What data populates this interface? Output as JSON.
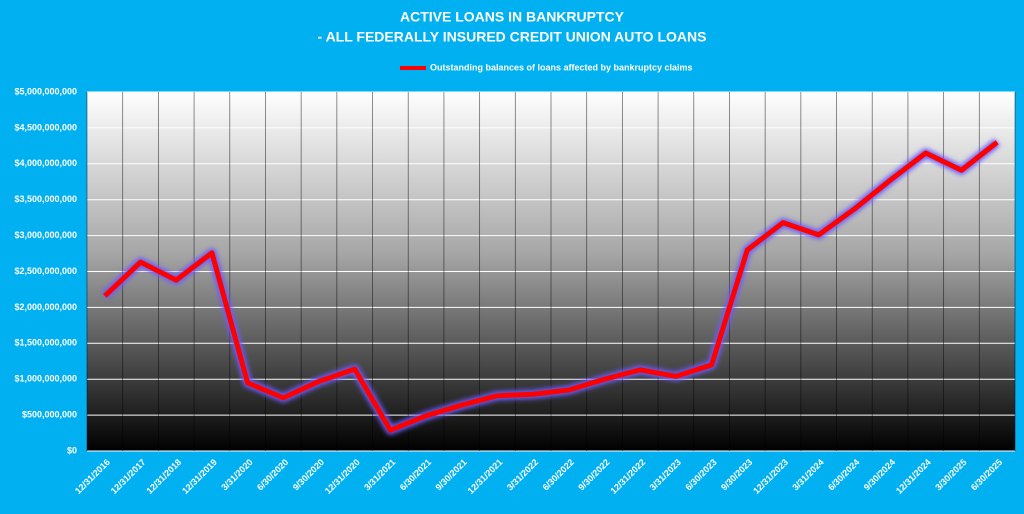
{
  "chart_data": {
    "type": "line",
    "title": "ACTIVE LOANS IN BANKRUPTCY",
    "subtitle": "- ALL FEDERALLY INSURED CREDIT UNION AUTO LOANS",
    "categories": [
      "12/31/2016",
      "12/31/2017",
      "12/31/2018",
      "12/31/2019",
      "3/31/2020",
      "6/30/2020",
      "9/30/2020",
      "12/31/2020",
      "3/31/2021",
      "6/30/2021",
      "9/30/2021",
      "12/31/2021",
      "3/31/2022",
      "6/30/2022",
      "9/30/2022",
      "12/31/2022",
      "3/31/2023",
      "6/30/2023",
      "9/30/2023",
      "12/31/2023",
      "3/31/2024",
      "6/30/2024",
      "9/30/2024",
      "12/31/2024",
      "3/30/2025",
      "6/30/2025"
    ],
    "series": [
      {
        "name": "Outstanding balances of loans affected by bankruptcy claims",
        "color": "#ff0000",
        "values": [
          2160000000,
          2630000000,
          2380000000,
          2760000000,
          950000000,
          740000000,
          970000000,
          1140000000,
          290000000,
          490000000,
          640000000,
          770000000,
          790000000,
          850000000,
          1000000000,
          1130000000,
          1040000000,
          1200000000,
          2800000000,
          3180000000,
          3010000000,
          3370000000,
          3770000000,
          4150000000,
          3910000000,
          4300000000
        ]
      }
    ],
    "ylim": [
      0,
      5000000000
    ],
    "yticks": [
      {
        "value": 0,
        "label": "$0"
      },
      {
        "value": 500000000,
        "label": "$500,000,000"
      },
      {
        "value": 1000000000,
        "label": "$1,000,000,000"
      },
      {
        "value": 1500000000,
        "label": "$1,500,000,000"
      },
      {
        "value": 2000000000,
        "label": "$2,000,000,000"
      },
      {
        "value": 2500000000,
        "label": "$2,500,000,000"
      },
      {
        "value": 3000000000,
        "label": "$3,000,000,000"
      },
      {
        "value": 3500000000,
        "label": "$3,500,000,000"
      },
      {
        "value": 4000000000,
        "label": "$4,000,000,000"
      },
      {
        "value": 4500000000,
        "label": "$4,500,000,000"
      },
      {
        "value": 5000000000,
        "label": "$5,000,000,000"
      }
    ],
    "grid": true,
    "legend": "top"
  }
}
